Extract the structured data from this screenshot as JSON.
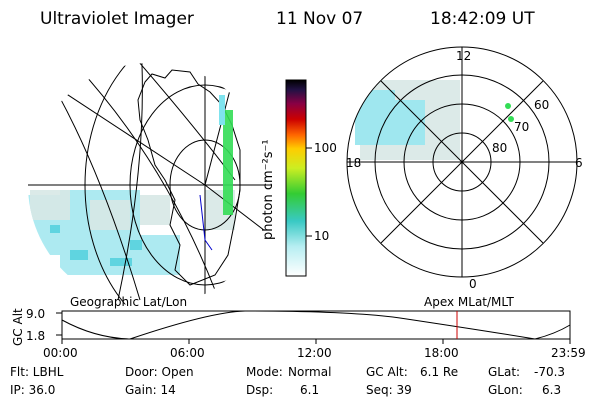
{
  "header": {
    "title": "Ultraviolet Imager",
    "date": "11 Nov 07",
    "time": "18:42:09 UT"
  },
  "colorbar": {
    "label": "photon cm⁻²s⁻¹",
    "ticks": [
      "100",
      "10"
    ]
  },
  "polar": {
    "mlt_labels": {
      "top": "12",
      "left": "18",
      "right": "6",
      "bottom": "0"
    },
    "lat_labels": [
      "60",
      "70",
      "80"
    ]
  },
  "projection_labels": {
    "left": "Geographic Lat/Lon",
    "right": "Apex MLat/MLT"
  },
  "altitude_plot": {
    "ylabel": "GC Alt",
    "yticks": [
      "9.0",
      "1.8"
    ],
    "xticks": [
      "00:00",
      "06:00",
      "12:00",
      "18:00",
      "23:59"
    ],
    "current_time_marker": "18:42"
  },
  "info": {
    "flt": "Flt: LBHL",
    "door": "Door: Open",
    "mode_label": "Mode:",
    "mode_value": "Normal",
    "gcalt_label": "GC Alt:",
    "gcalt_value": "6.1 Re",
    "glat_label": "GLat:",
    "glat_value": "-70.3",
    "ip": "IP: 36.0",
    "gain": "Gain: 14",
    "dsp_label": "Dsp:",
    "dsp_value": "6.1",
    "seq": "Seq: 39",
    "glon_label": "GLon:",
    "glon_value": "6.3"
  },
  "colors": {
    "line": "#000000",
    "marker": "#cc0000",
    "aurora_cyan": "#7fe3ee",
    "aurora_green": "#33dd55"
  }
}
